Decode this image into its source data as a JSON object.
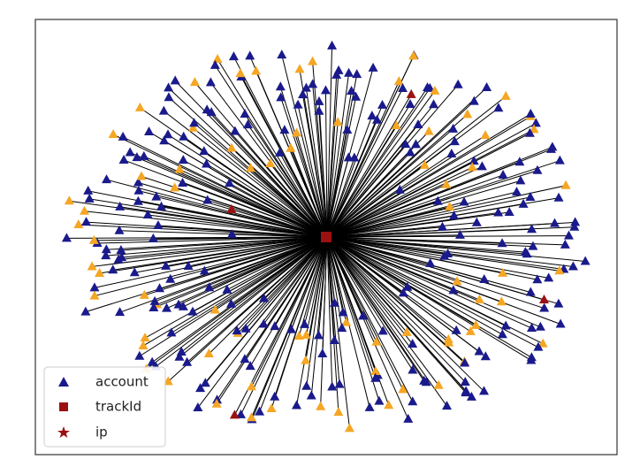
{
  "legend": {
    "items": [
      {
        "label": "account"
      },
      {
        "label": "trackId"
      },
      {
        "label": "ip"
      }
    ]
  }
}
